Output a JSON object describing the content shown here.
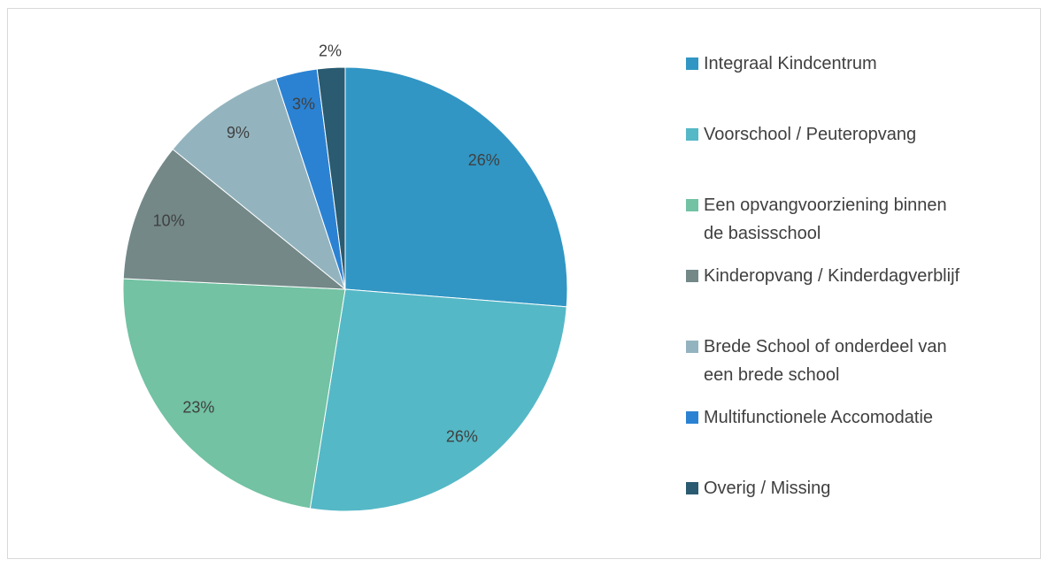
{
  "chart_data": {
    "type": "pie",
    "categories": [
      "Integraal Kindcentrum",
      "Voorschool / Peuteropvang",
      "Een opvangvoorziening binnen de basisschool",
      "Kinderopvang / Kinderdagverblijf",
      "Brede School of onderdeel van een brede school",
      "Multifunctionele Accomodatie",
      "Overig / Missing"
    ],
    "values": [
      26,
      26,
      23,
      10,
      9,
      3,
      2
    ],
    "value_labels": [
      "26%",
      "26%",
      "23%",
      "10%",
      "9%",
      "3%",
      "2%"
    ],
    "colors": [
      "#3196c4",
      "#55b8c6",
      "#72c2a3",
      "#748888",
      "#93b4bf",
      "#2b82d3",
      "#2a5b70"
    ],
    "legend": "right"
  }
}
